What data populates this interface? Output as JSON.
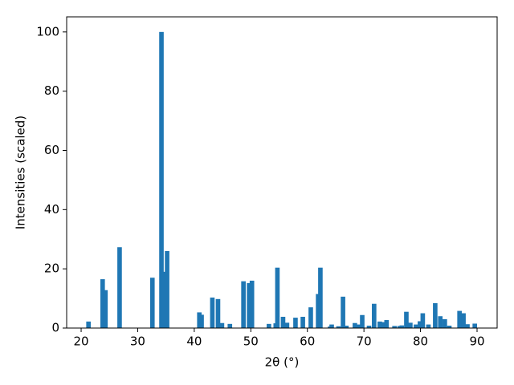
{
  "chart_data": {
    "type": "bar",
    "xlabel": "2θ (°)",
    "ylabel": "Intensities (scaled)",
    "color": "#1f77b4",
    "bar_width": 0.8,
    "x": [
      21.3,
      23.8,
      24.3,
      26.8,
      32.6,
      34.2,
      34.6,
      35.2,
      40.9,
      41.3,
      43.2,
      44.2,
      44.9,
      46.3,
      48.7,
      49.7,
      50.2,
      53.2,
      54.4,
      54.7,
      55.7,
      56.4,
      57.9,
      59.2,
      60.6,
      61.9,
      62.3,
      64.0,
      64.3,
      65.5,
      66.3,
      66.9,
      68.4,
      69.0,
      69.7,
      70.9,
      71.8,
      72.8,
      73.4,
      74.0,
      75.4,
      76.3,
      76.7,
      77.5,
      78.2,
      79.2,
      79.9,
      80.4,
      81.4,
      82.6,
      83.5,
      84.3,
      85.1,
      86.9,
      87.6,
      88.3,
      89.6
    ],
    "values": [
      2.2,
      16.5,
      12.8,
      27.3,
      17,
      100,
      19,
      26,
      5.3,
      4.5,
      10.3,
      9.8,
      1.7,
      1.4,
      15.8,
      15.2,
      16,
      1.4,
      1.6,
      20.4,
      3.8,
      1.8,
      3.5,
      3.8,
      7,
      11.5,
      20.4,
      0.5,
      1.2,
      0.6,
      10.6,
      0.8,
      1.7,
      1.2,
      4.4,
      0.8,
      8.2,
      2.2,
      2,
      2.7,
      0.7,
      0.7,
      0.9,
      5.5,
      1.8,
      1.2,
      2.3,
      5,
      1.2,
      8.4,
      4,
      3,
      0.8,
      5.8,
      5,
      1.3,
      1.5
    ],
    "xlim": [
      17.44,
      93.55
    ],
    "ylim": [
      0,
      105.1
    ],
    "xticks": [
      20,
      30,
      40,
      50,
      60,
      70,
      80,
      90
    ],
    "yticks": [
      0,
      20,
      40,
      60,
      80,
      100
    ]
  }
}
